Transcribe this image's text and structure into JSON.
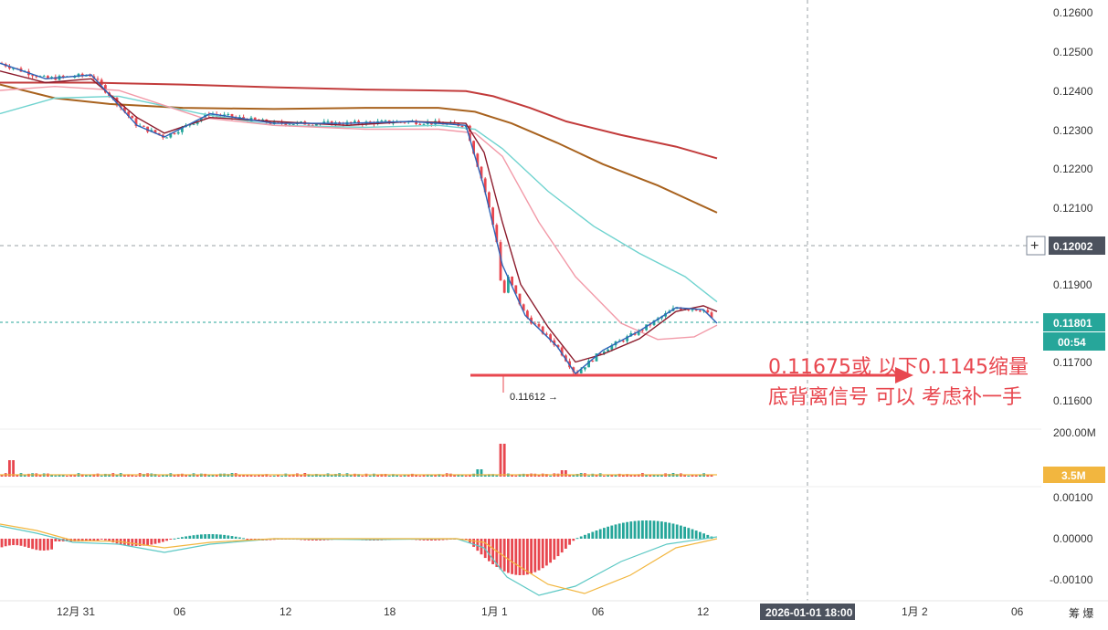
{
  "chart_data": {
    "type": "candlestick",
    "price_axis": {
      "ticks": [
        "0.12600",
        "0.12500",
        "0.12400",
        "0.12300",
        "0.12200",
        "0.12100",
        "0.11900",
        "0.11700",
        "0.11600"
      ],
      "range": [
        0.1153,
        0.1263
      ]
    },
    "price_markers": {
      "crosshair_price": "0.12002",
      "last_price": "0.11801",
      "countdown": "00:54",
      "low_label": "0.11612 →"
    },
    "volume_axis": {
      "tick": "200.00M",
      "current": "3.5M"
    },
    "macd_axis": {
      "ticks": [
        "0.00100",
        "0.00000",
        "-0.00100"
      ]
    },
    "time_axis": {
      "labels": [
        "12月 31",
        "06",
        "12",
        "18",
        "1月 1",
        "06",
        "12",
        "1月 2",
        "06"
      ],
      "crosshair_label": "2026-01-01 18:00",
      "right_corner": "筹 爆"
    },
    "annotation": {
      "line1": "0.11675或 以下0.1145缩量",
      "line2": "底背离信号 可以 考虑补一手"
    },
    "series": [
      {
        "name": "",
        "color": "#c23b3b",
        "points": [
          [
            0,
            0.1242
          ],
          [
            100,
            0.1242
          ],
          [
            200,
            0.12415
          ],
          [
            300,
            0.12408
          ],
          [
            400,
            0.12402
          ],
          [
            470,
            0.124
          ],
          [
            510,
            0.12398
          ],
          [
            540,
            0.12385
          ],
          [
            580,
            0.12355
          ],
          [
            620,
            0.1232
          ],
          [
            680,
            0.12285
          ],
          [
            740,
            0.12255
          ],
          [
            785,
            0.12225
          ]
        ]
      },
      {
        "name": "",
        "color": "#a8621e",
        "points": [
          [
            0,
            0.12415
          ],
          [
            60,
            0.1238
          ],
          [
            120,
            0.12365
          ],
          [
            200,
            0.12355
          ],
          [
            300,
            0.12352
          ],
          [
            400,
            0.12355
          ],
          [
            480,
            0.12355
          ],
          [
            520,
            0.12345
          ],
          [
            560,
            0.12315
          ],
          [
            610,
            0.12265
          ],
          [
            660,
            0.1221
          ],
          [
            720,
            0.12155
          ],
          [
            785,
            0.12085
          ]
        ]
      },
      {
        "name": "",
        "color": "#6fd3cf",
        "points": [
          [
            0,
            0.1234
          ],
          [
            60,
            0.1238
          ],
          [
            130,
            0.12385
          ],
          [
            220,
            0.1234
          ],
          [
            300,
            0.1231
          ],
          [
            400,
            0.12305
          ],
          [
            480,
            0.1231
          ],
          [
            520,
            0.123
          ],
          [
            550,
            0.1225
          ],
          [
            600,
            0.1214
          ],
          [
            650,
            0.1205
          ],
          [
            700,
            0.1198
          ],
          [
            750,
            0.1192
          ],
          [
            785,
            0.11855
          ]
        ]
      },
      {
        "name": "",
        "color": "#f29aa8",
        "points": [
          [
            0,
            0.124
          ],
          [
            60,
            0.1241
          ],
          [
            130,
            0.124
          ],
          [
            220,
            0.1233
          ],
          [
            300,
            0.1231
          ],
          [
            400,
            0.123
          ],
          [
            480,
            0.123
          ],
          [
            520,
            0.1229
          ],
          [
            550,
            0.1223
          ],
          [
            590,
            0.1206
          ],
          [
            630,
            0.1192
          ],
          [
            680,
            0.118
          ],
          [
            720,
            0.11758
          ],
          [
            760,
            0.11765
          ],
          [
            785,
            0.11795
          ]
        ]
      },
      {
        "name": "",
        "color": "#8b1a2b",
        "points": [
          [
            0,
            0.1245
          ],
          [
            50,
            0.1242
          ],
          [
            100,
            0.1243
          ],
          [
            150,
            0.1233
          ],
          [
            180,
            0.1229
          ],
          [
            230,
            0.1233
          ],
          [
            300,
            0.1232
          ],
          [
            380,
            0.1231
          ],
          [
            450,
            0.1232
          ],
          [
            510,
            0.12315
          ],
          [
            530,
            0.1224
          ],
          [
            550,
            0.1206
          ],
          [
            570,
            0.119
          ],
          [
            600,
            0.1179
          ],
          [
            630,
            0.117
          ],
          [
            660,
            0.1172
          ],
          [
            700,
            0.1176
          ],
          [
            740,
            0.1183
          ],
          [
            770,
            0.11845
          ],
          [
            785,
            0.1183
          ]
        ]
      },
      {
        "name": "",
        "color": "#2c63b8",
        "points": [
          [
            0,
            0.1247
          ],
          [
            50,
            0.1243
          ],
          [
            100,
            0.1244
          ],
          [
            150,
            0.1231
          ],
          [
            180,
            0.1228
          ],
          [
            230,
            0.1234
          ],
          [
            300,
            0.12315
          ],
          [
            380,
            0.12315
          ],
          [
            450,
            0.1232
          ],
          [
            510,
            0.1231
          ],
          [
            530,
            0.1215
          ],
          [
            550,
            0.1195
          ],
          [
            575,
            0.1182
          ],
          [
            610,
            0.1174
          ],
          [
            630,
            0.1167
          ],
          [
            660,
            0.1173
          ],
          [
            700,
            0.1178
          ],
          [
            740,
            0.1184
          ],
          [
            770,
            0.11835
          ],
          [
            785,
            0.118
          ]
        ]
      }
    ]
  }
}
